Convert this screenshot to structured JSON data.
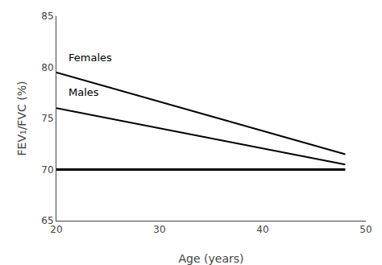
{
  "chart_data": {
    "type": "line",
    "x_label": "Age (years)",
    "y_label": "FEV₁/FVC (%)",
    "series": [
      {
        "name": "Females",
        "color": "#000000",
        "x": [
          20,
          48
        ],
        "values": [
          79.5,
          71.5
        ]
      },
      {
        "name": "Males",
        "color": "#000000",
        "x": [
          20,
          48
        ],
        "values": [
          76.0,
          70.5
        ]
      },
      {
        "color": "#000000",
        "line_style": "thick",
        "x": [
          20,
          48
        ],
        "values": [
          70,
          70
        ]
      }
    ],
    "annotations": [
      {
        "text": "Females",
        "x": 21.0,
        "y": 80.2,
        "color": "#000000"
      },
      {
        "text": "Males",
        "x": 21.0,
        "y": 76.8,
        "color": "#000000"
      }
    ],
    "xlim": [
      20,
      50
    ],
    "xticks": [
      20,
      30,
      40,
      50
    ],
    "ylim": [
      65,
      85
    ],
    "yticks": [
      65,
      70,
      75,
      80,
      85
    ],
    "grid": false
  }
}
